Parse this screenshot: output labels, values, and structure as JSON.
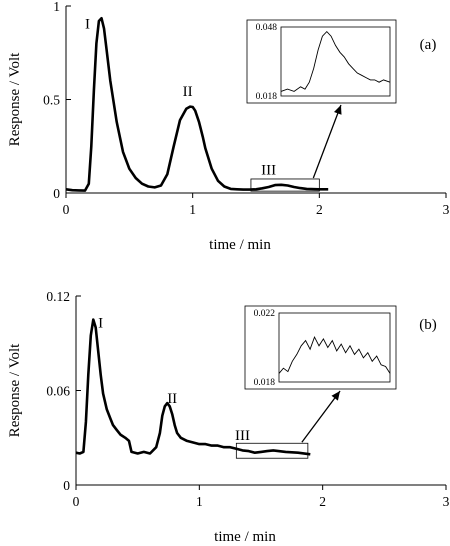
{
  "chart_data": [
    {
      "type": "line",
      "panel_label": "(a)",
      "xlabel": "time / min",
      "ylabel": "Response / Volt",
      "xlim": [
        0,
        3
      ],
      "ylim": [
        0,
        1
      ],
      "xticks": [
        "0",
        "1",
        "2",
        "3"
      ],
      "yticks": [
        "0",
        "0.5",
        "1"
      ],
      "series": [
        {
          "x": [
            0,
            0.05,
            0.1,
            0.15,
            0.18,
            0.2,
            0.22,
            0.24,
            0.26,
            0.28,
            0.3,
            0.32,
            0.35,
            0.4,
            0.45,
            0.5,
            0.55,
            0.6,
            0.65,
            0.7,
            0.75,
            0.8,
            0.85,
            0.9,
            0.95,
            0.98,
            1.0,
            1.02,
            1.05,
            1.08,
            1.1,
            1.15,
            1.2,
            1.25,
            1.3,
            1.35,
            1.4,
            1.45,
            1.5,
            1.55,
            1.6,
            1.65,
            1.7,
            1.75,
            1.8,
            1.85,
            1.9,
            2.0,
            2.07
          ],
          "y": [
            0.02,
            0.015,
            0.014,
            0.013,
            0.05,
            0.25,
            0.55,
            0.8,
            0.92,
            0.935,
            0.88,
            0.77,
            0.6,
            0.38,
            0.22,
            0.13,
            0.08,
            0.05,
            0.035,
            0.03,
            0.04,
            0.1,
            0.25,
            0.39,
            0.45,
            0.462,
            0.46,
            0.44,
            0.38,
            0.3,
            0.24,
            0.13,
            0.065,
            0.035,
            0.022,
            0.02,
            0.018,
            0.018,
            0.02,
            0.025,
            0.032,
            0.042,
            0.044,
            0.04,
            0.032,
            0.026,
            0.022,
            0.02,
            0.02
          ]
        }
      ],
      "peak_labels": [
        {
          "text": "I",
          "x": 0.17,
          "y": 0.88
        },
        {
          "text": "II",
          "x": 0.96,
          "y": 0.52
        },
        {
          "text": "III",
          "x": 1.6,
          "y": 0.1
        }
      ],
      "zoom_box": {
        "x": [
          1.46,
          2.0
        ],
        "y": [
          0.01,
          0.075
        ]
      },
      "inset": {
        "yticks": [
          "0.048",
          "0.018"
        ],
        "ylim": [
          0.018,
          0.048
        ],
        "x": [
          0,
          0.06,
          0.12,
          0.18,
          0.22,
          0.26,
          0.3,
          0.34,
          0.38,
          0.42,
          0.46,
          0.5,
          0.54,
          0.58,
          0.62,
          0.66,
          0.7,
          0.74,
          0.78,
          0.82,
          0.86,
          0.9,
          0.94,
          1.0
        ],
        "y": [
          0.02,
          0.021,
          0.02,
          0.022,
          0.021,
          0.024,
          0.03,
          0.038,
          0.044,
          0.046,
          0.044,
          0.04,
          0.037,
          0.035,
          0.032,
          0.03,
          0.028,
          0.027,
          0.026,
          0.025,
          0.025,
          0.024,
          0.025,
          0.024
        ]
      }
    },
    {
      "type": "line",
      "panel_label": "(b)",
      "xlabel": "time / min",
      "ylabel": "Response / Volt",
      "xlim": [
        0,
        3
      ],
      "ylim": [
        0,
        0.12
      ],
      "xticks": [
        "0",
        "1",
        "2",
        "3"
      ],
      "yticks": [
        "0",
        "0.06",
        "0.12"
      ],
      "series": [
        {
          "x": [
            0,
            0.03,
            0.06,
            0.08,
            0.1,
            0.12,
            0.14,
            0.16,
            0.18,
            0.2,
            0.22,
            0.25,
            0.28,
            0.3,
            0.33,
            0.36,
            0.4,
            0.43,
            0.45,
            0.5,
            0.55,
            0.6,
            0.65,
            0.68,
            0.7,
            0.72,
            0.74,
            0.76,
            0.78,
            0.8,
            0.82,
            0.85,
            0.9,
            0.95,
            1.0,
            1.05,
            1.1,
            1.15,
            1.2,
            1.25,
            1.3,
            1.35,
            1.4,
            1.45,
            1.5,
            1.55,
            1.6,
            1.7,
            1.8,
            1.9
          ],
          "y": [
            0.0205,
            0.02,
            0.021,
            0.04,
            0.07,
            0.095,
            0.105,
            0.1,
            0.085,
            0.07,
            0.058,
            0.048,
            0.042,
            0.038,
            0.035,
            0.032,
            0.03,
            0.028,
            0.021,
            0.02,
            0.021,
            0.02,
            0.024,
            0.033,
            0.044,
            0.05,
            0.052,
            0.05,
            0.045,
            0.038,
            0.033,
            0.03,
            0.028,
            0.027,
            0.026,
            0.026,
            0.025,
            0.025,
            0.024,
            0.024,
            0.023,
            0.022,
            0.0215,
            0.0205,
            0.021,
            0.0215,
            0.022,
            0.021,
            0.0205,
            0.0195
          ]
        }
      ],
      "peak_labels": [
        {
          "text": "I",
          "x": 0.2,
          "y": 0.1
        },
        {
          "text": "II",
          "x": 0.78,
          "y": 0.052
        },
        {
          "text": "III",
          "x": 1.35,
          "y": 0.0285
        }
      ],
      "zoom_box": {
        "x": [
          1.3,
          1.88
        ],
        "y": [
          0.017,
          0.0265
        ]
      },
      "inset": {
        "yticks": [
          "0.022",
          "0.018"
        ],
        "ylim": [
          0.018,
          0.022
        ],
        "x": [
          0,
          0.04,
          0.08,
          0.12,
          0.16,
          0.2,
          0.24,
          0.28,
          0.32,
          0.36,
          0.4,
          0.44,
          0.48,
          0.52,
          0.56,
          0.6,
          0.64,
          0.68,
          0.72,
          0.76,
          0.8,
          0.84,
          0.88,
          0.92,
          0.96,
          1.0
        ],
        "y": [
          0.0185,
          0.0188,
          0.0186,
          0.0192,
          0.0196,
          0.0201,
          0.0204,
          0.0199,
          0.0206,
          0.0201,
          0.0205,
          0.02,
          0.0204,
          0.0198,
          0.0202,
          0.0197,
          0.0201,
          0.0196,
          0.0199,
          0.0194,
          0.0197,
          0.0192,
          0.0195,
          0.019,
          0.0189,
          0.0185
        ]
      }
    }
  ]
}
